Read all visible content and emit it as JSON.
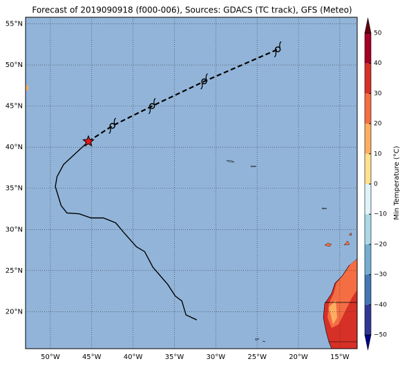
{
  "map": {
    "title": "Forecast of 2019090918 (f000-006), Sources: GDACS (TC track), GFS (Meteo)",
    "xlim": [
      -53,
      -12.9
    ],
    "ylim": [
      15.5,
      55.8
    ],
    "xticks": [
      {
        "value": -50,
        "label": "50°W"
      },
      {
        "value": -45,
        "label": "45°W"
      },
      {
        "value": -40,
        "label": "40°W"
      },
      {
        "value": -35,
        "label": "35°W"
      },
      {
        "value": -30,
        "label": "30°W"
      },
      {
        "value": -25,
        "label": "25°W"
      },
      {
        "value": -20,
        "label": "20°W"
      },
      {
        "value": -15,
        "label": "15°W"
      }
    ],
    "yticks": [
      {
        "value": 20,
        "label": "20°N"
      },
      {
        "value": 25,
        "label": "25°N"
      },
      {
        "value": 30,
        "label": "30°N"
      },
      {
        "value": 35,
        "label": "35°N"
      },
      {
        "value": 40,
        "label": "40°N"
      },
      {
        "value": 45,
        "label": "45°N"
      },
      {
        "value": 50,
        "label": "50°N"
      },
      {
        "value": 55,
        "label": "55°N"
      }
    ],
    "past_track": {
      "lon": [
        -45.4,
        -48.4,
        -49.2,
        -49.4,
        -48.7,
        -48.0,
        -46.5,
        -45.1,
        -43.6,
        -42.1,
        -41.1,
        -39.6,
        -38.6,
        -37.6,
        -35.8,
        -34.9,
        -34.1,
        -33.6,
        -32.3
      ],
      "lat": [
        40.7,
        37.9,
        36.4,
        35.2,
        32.9,
        32.0,
        31.9,
        31.4,
        31.4,
        30.8,
        29.6,
        27.9,
        27.3,
        25.4,
        23.3,
        21.9,
        21.3,
        19.6,
        19.0
      ]
    },
    "forecast_track": {
      "lon": [
        -45.4,
        -42.5,
        -37.7,
        -31.4,
        -22.5
      ],
      "lat": [
        40.7,
        42.6,
        45.0,
        48.0,
        51.9
      ]
    },
    "colorbar": {
      "label": "Min Temperature (°C)",
      "lim": [
        -50,
        50
      ],
      "ticks": [
        {
          "value": 50,
          "label": "50"
        },
        {
          "value": 40,
          "label": "40"
        },
        {
          "value": 30,
          "label": "30"
        },
        {
          "value": 20,
          "label": "20"
        },
        {
          "value": 10,
          "label": "10"
        },
        {
          "value": 0,
          "label": "0"
        },
        {
          "value": -10,
          "label": "−10"
        },
        {
          "value": -20,
          "label": "−20"
        },
        {
          "value": -30,
          "label": "−30"
        },
        {
          "value": -40,
          "label": "−40"
        },
        {
          "value": -50,
          "label": "−50"
        }
      ]
    }
  }
}
